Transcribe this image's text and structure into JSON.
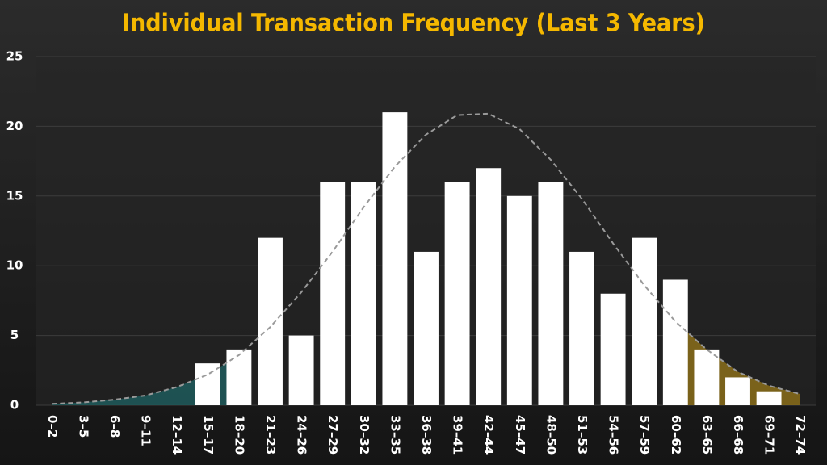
{
  "chart_data": {
    "type": "bar",
    "title": "Individual Transaction Frequency (Last 3 Years)",
    "categories": [
      "0–2",
      "3–5",
      "6–8",
      "9–11",
      "12–14",
      "15–17",
      "18–20",
      "21–23",
      "24–26",
      "27–29",
      "30–32",
      "33–35",
      "36–38",
      "39–41",
      "42–44",
      "45–47",
      "48–50",
      "51–53",
      "54–56",
      "57–59",
      "60–62",
      "63–65",
      "66–68",
      "69–71",
      "72–74"
    ],
    "values": [
      0,
      0,
      0,
      0,
      0,
      3,
      4,
      12,
      5,
      16,
      16,
      21,
      11,
      16,
      17,
      15,
      16,
      11,
      8,
      12,
      9,
      4,
      2,
      1,
      0
    ],
    "color": "#ffffff",
    "curve": {
      "values": [
        0.1,
        0.2,
        0.4,
        0.7,
        1.3,
        2.2,
        3.6,
        5.6,
        8.1,
        11.0,
        14.2,
        17.1,
        19.4,
        20.8,
        20.9,
        19.8,
        17.6,
        14.8,
        11.6,
        8.6,
        6.0,
        4.0,
        2.4,
        1.4,
        0.8
      ],
      "color": "#9a9a9a"
    },
    "tail_colors": [
      "#1f5a5c",
      "#8a6d1a"
    ],
    "ylim": [
      0,
      25
    ],
    "yticks": [
      0,
      5,
      10,
      15,
      20,
      25
    ],
    "grid": true
  }
}
